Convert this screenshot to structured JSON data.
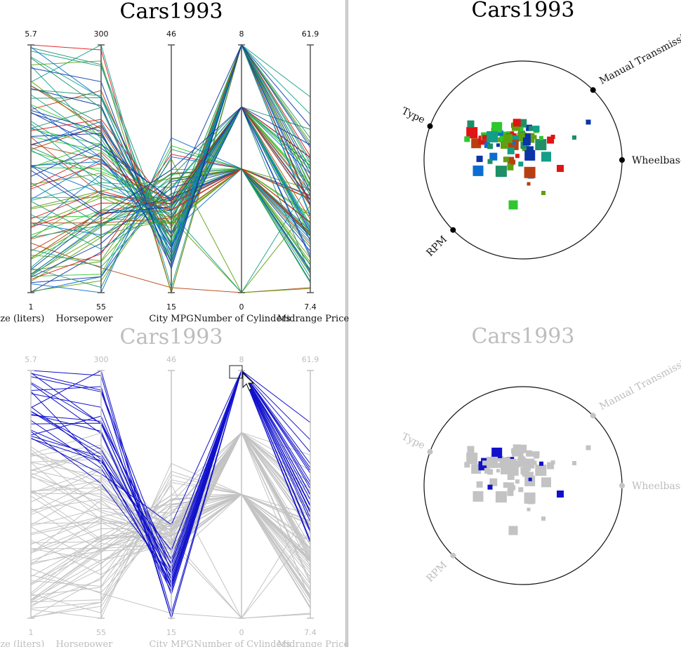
{
  "colors": {
    "axis": "#555555",
    "muted": "#c3c3c3",
    "selected": "#1111cc",
    "palette": [
      "#0b34a8",
      "#1e8f66",
      "#2ec72e",
      "#5fa010",
      "#b84010",
      "#e01414",
      "#119f88",
      "#0a6ed0"
    ]
  },
  "chart_data": [
    {
      "type": "parallel-coordinates",
      "title": "Cars1993",
      "dimensions": [
        {
          "name": "Engine Size (liters)",
          "min": 1,
          "max": 5.7,
          "max_label": "5.7",
          "min_label": "1"
        },
        {
          "name": "Horsepower",
          "min": 55,
          "max": 300,
          "max_label": "300",
          "min_label": "55"
        },
        {
          "name": "City MPG",
          "min": 15,
          "max": 46,
          "max_label": "46",
          "min_label": "15"
        },
        {
          "name": "Number of Cylinders",
          "min": 0,
          "max": 8,
          "max_label": "8",
          "min_label": "0"
        },
        {
          "name": "Midrange Price",
          "min": 7.4,
          "max": 61.9,
          "max_label": "61.9",
          "min_label": "7.4"
        }
      ],
      "series_count": 93,
      "highlight": "none"
    },
    {
      "type": "radviz",
      "title": "Cars1993",
      "anchors": [
        "Manual Transmission",
        "Wheelbase",
        "RPM",
        "Type"
      ],
      "highlight": "none"
    },
    {
      "type": "parallel-coordinates",
      "title": "Cars1993",
      "dimensions": [
        {
          "name": "Engine Size (liters)",
          "max_label": "5.7",
          "min_label": "1"
        },
        {
          "name": "Horsepower",
          "max_label": "300",
          "min_label": "55"
        },
        {
          "name": "City MPG",
          "max_label": "46",
          "min_label": "15"
        },
        {
          "name": "Number of Cylinders",
          "max_label": "8",
          "min_label": "0"
        },
        {
          "name": "Midrange Price",
          "max_label": "61.9",
          "min_label": "7.4"
        }
      ],
      "highlight": "brushed",
      "brush": {
        "axis": "Number of Cylinders",
        "value": 8
      }
    },
    {
      "type": "radviz",
      "title": "Cars1993",
      "anchors": [
        "Manual Transmission",
        "Wheelbase",
        "RPM",
        "Type"
      ],
      "highlight": "brushed"
    }
  ]
}
